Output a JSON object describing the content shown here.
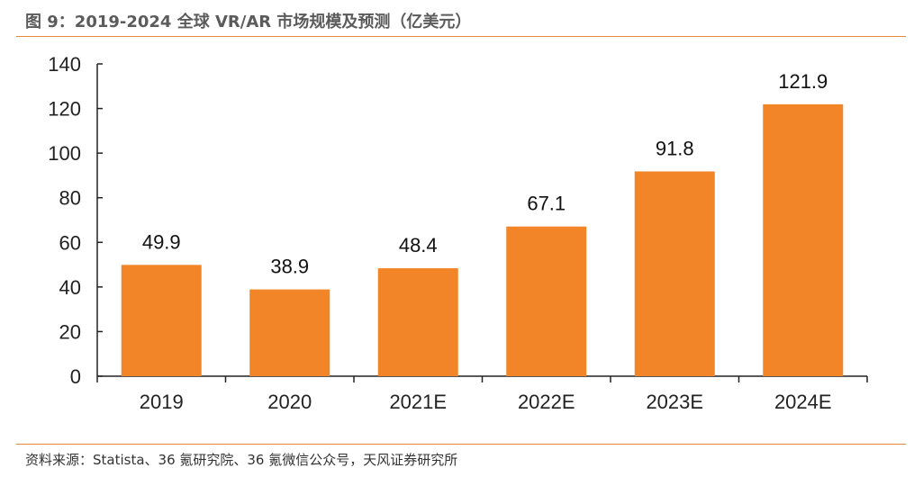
{
  "title": "图 9：2019-2024 全球 VR/AR 市场规模及预测（亿美元）",
  "source": "资料来源：Statista、36 氪研究院、36 氪微信公众号，天风证券研究所",
  "colors": {
    "bar": "#f28527",
    "accent_rule": "#e8883a",
    "axis": "#222222"
  },
  "chart_data": {
    "type": "bar",
    "title": "图 9：2019-2024 全球 VR/AR 市场规模及预测（亿美元）",
    "categories": [
      "2019",
      "2020",
      "2021E",
      "2022E",
      "2023E",
      "2024E"
    ],
    "values": [
      49.9,
      38.9,
      48.4,
      67.1,
      91.8,
      121.9
    ],
    "data_labels": [
      "49.9",
      "38.9",
      "48.4",
      "67.1",
      "91.8",
      "121.9"
    ],
    "xlabel": "",
    "ylabel": "",
    "ylim": [
      0,
      140
    ],
    "yticks": [
      0,
      20,
      40,
      60,
      80,
      100,
      120,
      140
    ],
    "grid": false,
    "legend": "none"
  }
}
